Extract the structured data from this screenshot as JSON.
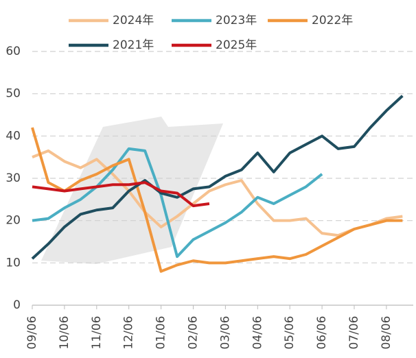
{
  "chart_data": {
    "type": "line",
    "categories": [
      "09/06",
      null,
      "10/06",
      null,
      "11/06",
      null,
      "12/06",
      null,
      "01/06",
      null,
      "02/06",
      null,
      "03/06",
      null,
      "04/06",
      null,
      "05/06",
      null,
      "06/06",
      null,
      "07/06",
      null,
      "08/06",
      null
    ],
    "series": [
      {
        "name": "2024年",
        "color": "#f6c18f",
        "values": [
          35,
          36.5,
          34,
          32.5,
          34.5,
          31,
          27,
          22,
          18.5,
          21,
          24,
          27,
          28.5,
          29.5,
          24,
          20,
          20,
          20.5,
          17,
          16.5,
          18,
          19,
          20.5,
          21
        ]
      },
      {
        "name": "2023年",
        "color": "#4aaec3",
        "values": [
          20,
          20.5,
          23,
          25,
          28,
          32,
          37,
          36.5,
          26,
          11.5,
          15.5,
          17.5,
          19.5,
          22,
          25.5,
          24,
          26,
          28,
          31,
          null,
          null,
          null,
          null,
          null
        ]
      },
      {
        "name": "2022年",
        "color": "#f0963c",
        "values": [
          42,
          29,
          27,
          29.5,
          31,
          33,
          34.5,
          22,
          8,
          9.5,
          10.5,
          10,
          10,
          10.5,
          11,
          11.5,
          11,
          12,
          14,
          16,
          18,
          19,
          20,
          20
        ]
      },
      {
        "name": "2021年",
        "color": "#1f4e5f",
        "values": [
          11,
          14.5,
          18.5,
          21.5,
          22.5,
          23,
          27,
          29.5,
          26.5,
          25.5,
          27.5,
          28,
          30.5,
          32,
          36,
          31.5,
          36,
          38,
          40,
          37,
          37.5,
          42,
          46,
          49.5
        ]
      },
      {
        "name": "2025年",
        "color": "#c9161d",
        "values": [
          28,
          27.5,
          27,
          27.5,
          28,
          28.5,
          28.5,
          29,
          27,
          26.5,
          23.5,
          24,
          null,
          null,
          null,
          null,
          null,
          null,
          null,
          null,
          null,
          null,
          null,
          null
        ]
      }
    ],
    "ylim": [
      0,
      60
    ],
    "yticks": [
      0,
      10,
      20,
      30,
      40,
      50,
      60
    ],
    "grid": true
  }
}
